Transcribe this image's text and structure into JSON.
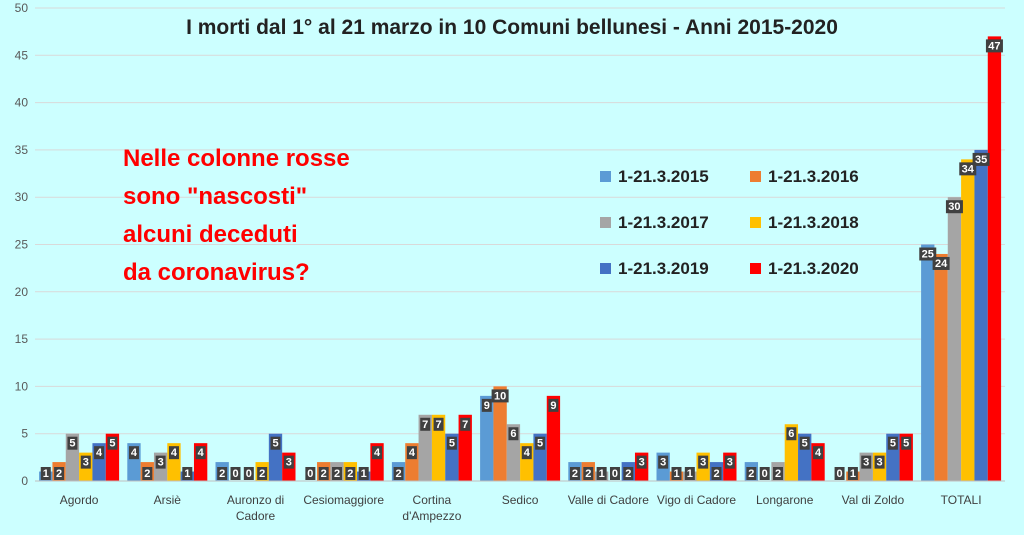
{
  "chart_data": {
    "type": "bar",
    "title": "I morti dal 1° al 21 marzo in 10 Comuni bellunesi - Anni 2015-2020",
    "categories": [
      "Agordo",
      "Arsiè",
      "Auronzo di Cadore",
      "Cesiomaggiore",
      "Cortina d'Ampezzo",
      "Sedico",
      "Valle di Cadore",
      "Vigo di Cadore",
      "Longarone",
      "Val di Zoldo",
      "TOTALI"
    ],
    "category_lines": [
      [
        "Agordo"
      ],
      [
        "Arsiè"
      ],
      [
        "Auronzo di",
        "Cadore"
      ],
      [
        "Cesiomaggiore"
      ],
      [
        "Cortina",
        "d'Ampezzo"
      ],
      [
        "Sedico"
      ],
      [
        "Valle di Cadore"
      ],
      [
        "Vigo di Cadore"
      ],
      [
        "Longarone"
      ],
      [
        "Val di Zoldo"
      ],
      [
        "TOTALI"
      ]
    ],
    "series": [
      {
        "name": "1-21.3.2015",
        "color": "#5b9bd5",
        "values": [
          1,
          4,
          2,
          0,
          2,
          9,
          2,
          3,
          2,
          0,
          25
        ]
      },
      {
        "name": "1-21.3.2016",
        "color": "#ed7d31",
        "values": [
          2,
          2,
          0,
          2,
          4,
          10,
          2,
          1,
          0,
          1,
          24
        ]
      },
      {
        "name": "1-21.3.2017",
        "color": "#a5a5a5",
        "values": [
          5,
          3,
          0,
          2,
          7,
          6,
          1,
          1,
          2,
          3,
          30
        ]
      },
      {
        "name": "1-21.3.2018",
        "color": "#ffc000",
        "values": [
          3,
          4,
          2,
          2,
          7,
          4,
          0,
          3,
          6,
          3,
          34
        ]
      },
      {
        "name": "1-21.3.2019",
        "color": "#4472c4",
        "values": [
          4,
          1,
          5,
          1,
          5,
          5,
          2,
          2,
          5,
          5,
          35
        ]
      },
      {
        "name": "1-21.3.2020",
        "color": "#ff0000",
        "values": [
          5,
          4,
          3,
          4,
          7,
          9,
          3,
          3,
          4,
          5,
          47
        ]
      }
    ],
    "ylim": [
      0,
      50
    ],
    "y_ticks": [
      0,
      5,
      10,
      15,
      20,
      25,
      30,
      35,
      40,
      45,
      50
    ],
    "grid": true,
    "legend": {
      "placement": "center-right",
      "columns": 2
    },
    "annotation": {
      "lines": [
        "Nelle colonne rosse",
        "sono \"nascosti\"",
        "alcuni deceduti",
        "da coronavirus?"
      ],
      "color": "#ff0000"
    },
    "background_color": "#ccffff",
    "gridline_color": "#d9d9d9",
    "axis_line_color": "#bfbfbf"
  }
}
